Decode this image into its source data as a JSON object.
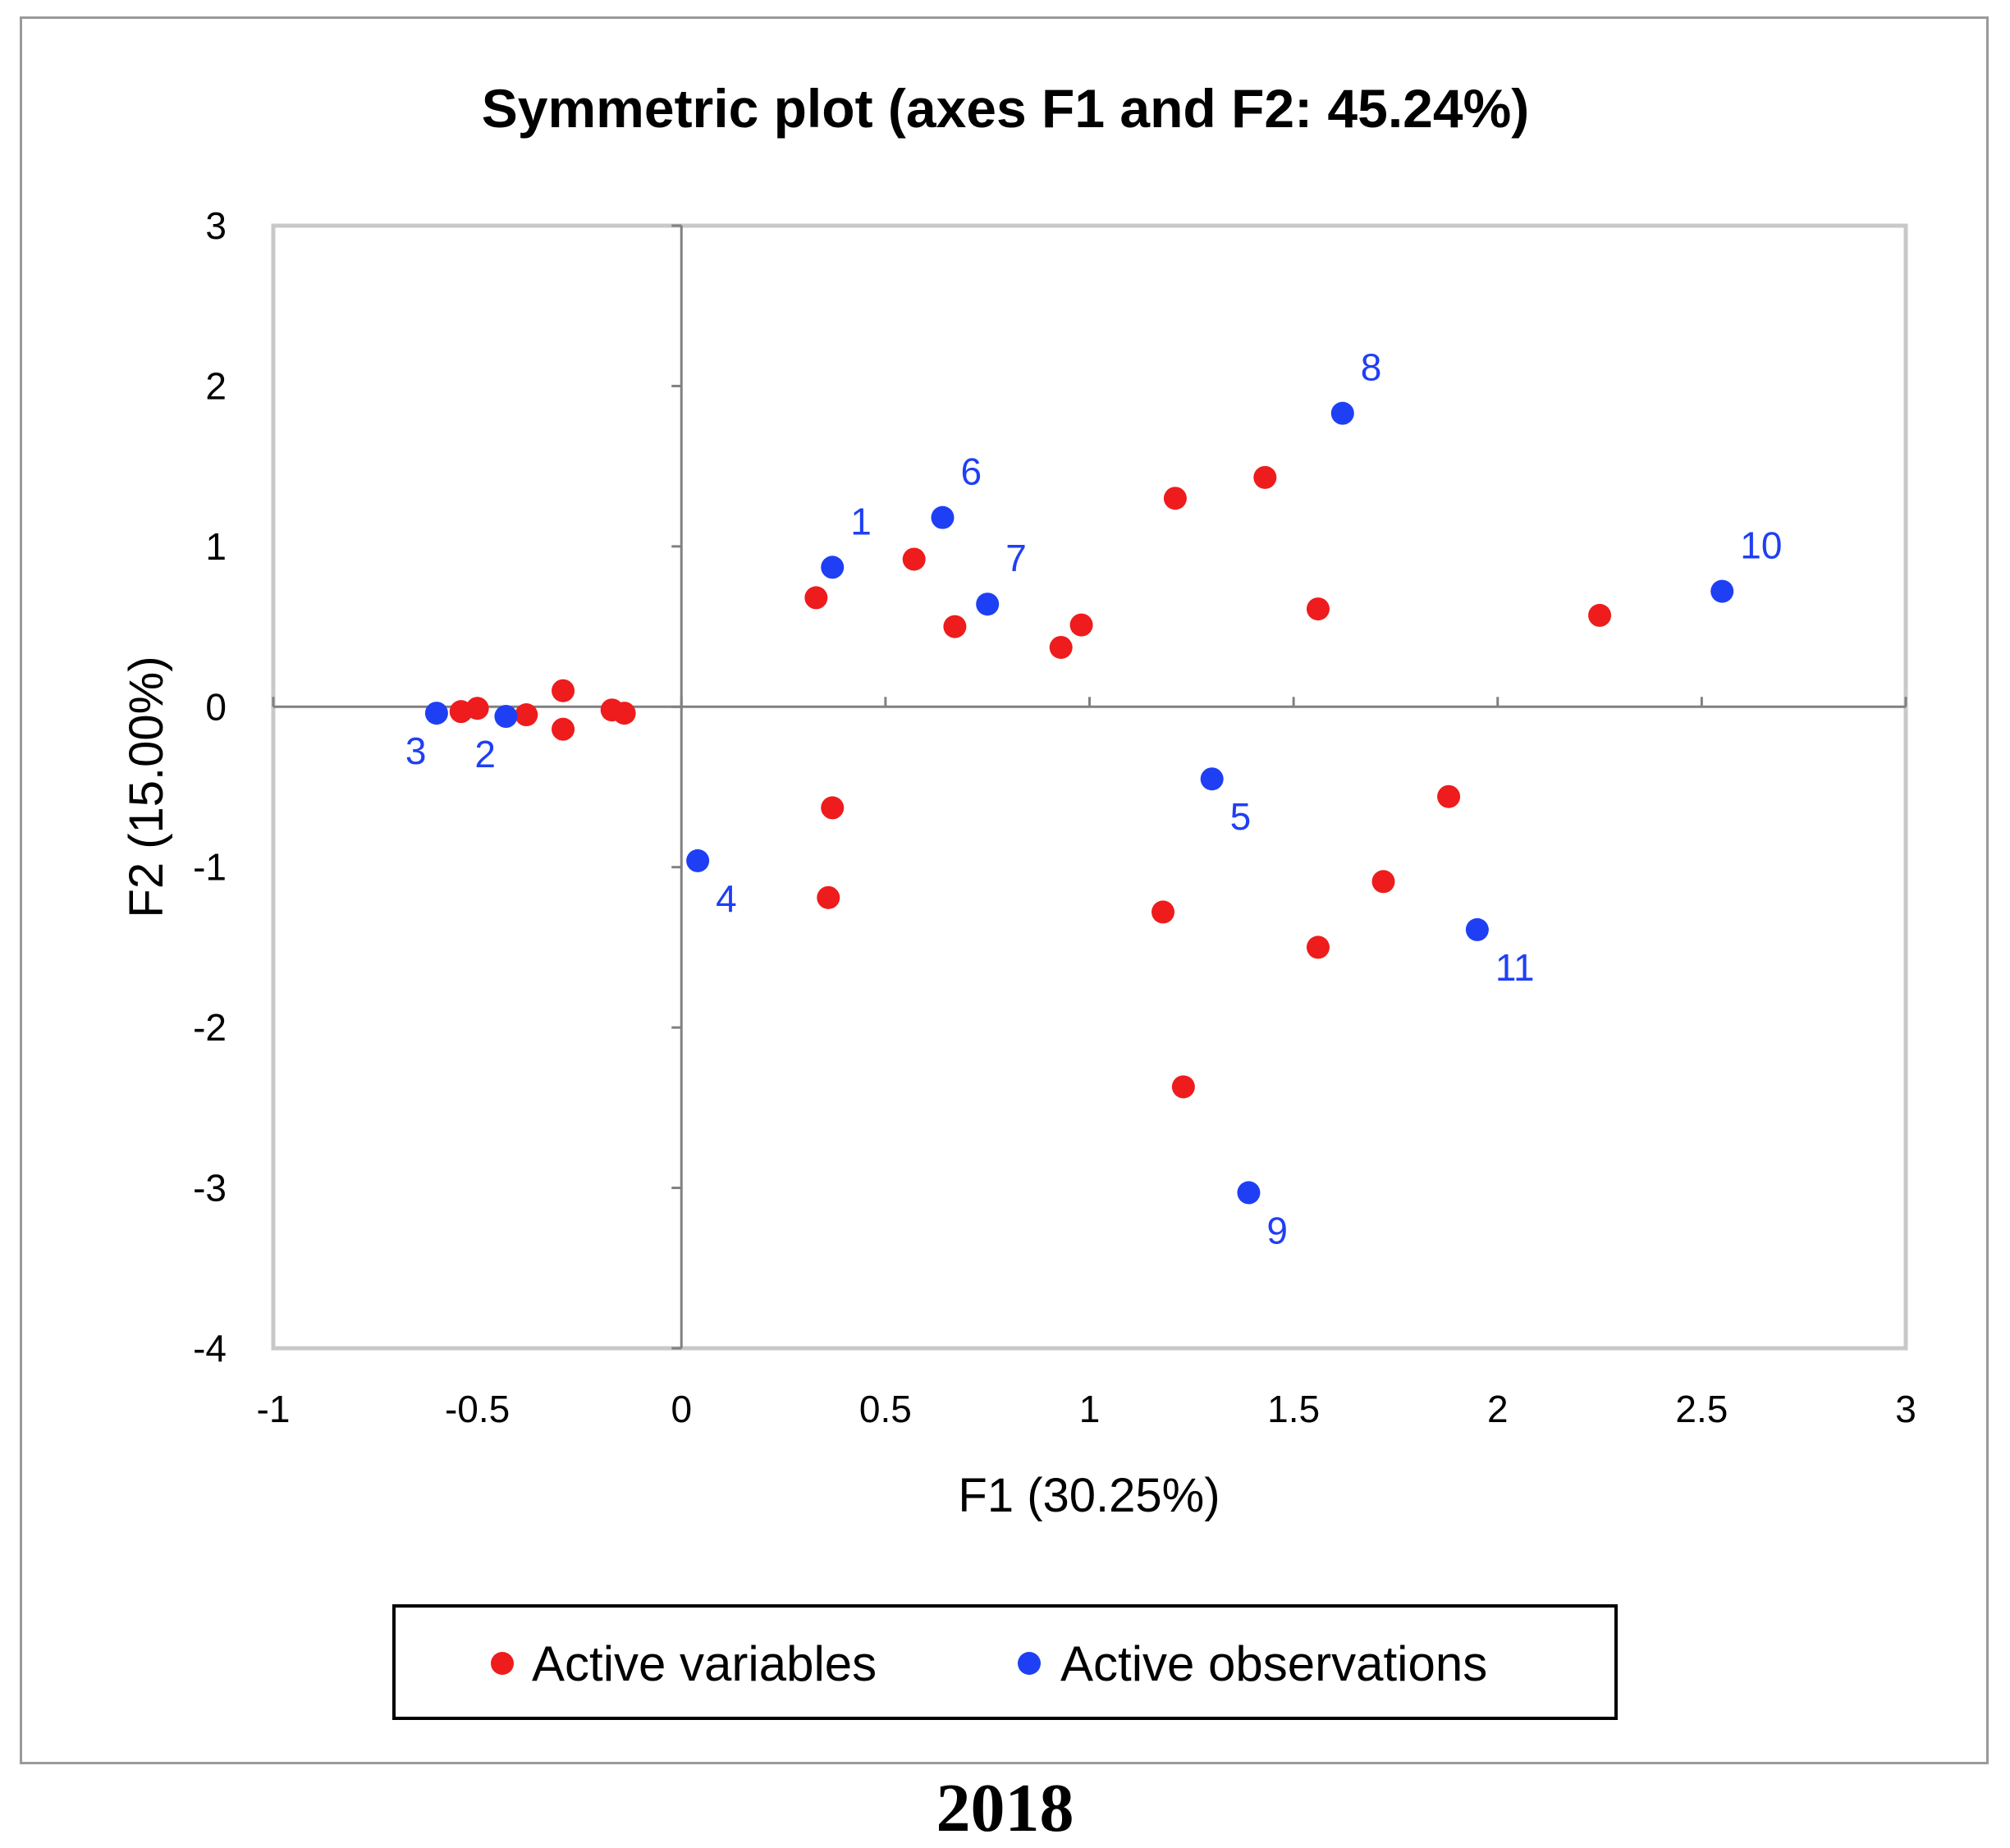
{
  "chart_data": {
    "type": "scatter",
    "title": "Symmetric plot (axes F1 and F2: 45.24%)",
    "xlabel": "F1 (30.25%)",
    "ylabel": "F2 (15.00%)",
    "xlim": [
      -1,
      3
    ],
    "ylim": [
      -4,
      3
    ],
    "x_ticks": [
      -1,
      -0.5,
      0,
      0.5,
      1,
      1.5,
      2,
      2.5,
      3
    ],
    "x_tick_labels": [
      "-1",
      "-0.5",
      "0",
      "0.5",
      "1",
      "1.5",
      "2",
      "2.5",
      "3"
    ],
    "y_ticks": [
      3,
      2,
      1,
      0,
      -1,
      -2,
      -3,
      -4
    ],
    "y_tick_labels": [
      "3",
      "2",
      "1",
      "0",
      "-1",
      "-2",
      "-3",
      "-4"
    ],
    "grid": false,
    "legend_position": "bottom",
    "series": [
      {
        "name": "Active variables",
        "color": "#ee1c1c",
        "points": [
          {
            "x": 0.33,
            "y": 0.68
          },
          {
            "x": 0.57,
            "y": 0.92
          },
          {
            "x": 0.67,
            "y": 0.5
          },
          {
            "x": 0.93,
            "y": 0.37
          },
          {
            "x": 0.98,
            "y": 0.51
          },
          {
            "x": 1.21,
            "y": 1.3
          },
          {
            "x": 1.43,
            "y": 1.43
          },
          {
            "x": 1.56,
            "y": 0.61
          },
          {
            "x": 2.25,
            "y": 0.57
          },
          {
            "x": -0.54,
            "y": -0.03
          },
          {
            "x": -0.5,
            "y": -0.01
          },
          {
            "x": -0.38,
            "y": -0.05
          },
          {
            "x": -0.29,
            "y": 0.1
          },
          {
            "x": -0.29,
            "y": -0.14
          },
          {
            "x": -0.17,
            "y": -0.02
          },
          {
            "x": -0.14,
            "y": -0.04
          },
          {
            "x": 0.37,
            "y": -0.63
          },
          {
            "x": 0.36,
            "y": -1.19
          },
          {
            "x": 1.18,
            "y": -1.28
          },
          {
            "x": 1.56,
            "y": -1.5
          },
          {
            "x": 1.72,
            "y": -1.09
          },
          {
            "x": 1.88,
            "y": -0.56
          },
          {
            "x": 1.23,
            "y": -2.37
          }
        ]
      },
      {
        "name": "Active observations",
        "color": "#1f3ff5",
        "points": [
          {
            "x": 0.37,
            "y": 0.87,
            "label": "1"
          },
          {
            "x": -0.43,
            "y": -0.06,
            "label": "2"
          },
          {
            "x": -0.6,
            "y": -0.04,
            "label": "3"
          },
          {
            "x": 0.04,
            "y": -0.96,
            "label": "4"
          },
          {
            "x": 1.3,
            "y": -0.45,
            "label": "5"
          },
          {
            "x": 0.64,
            "y": 1.18,
            "label": "6"
          },
          {
            "x": 0.75,
            "y": 0.64,
            "label": "7"
          },
          {
            "x": 1.62,
            "y": 1.83,
            "label": "8"
          },
          {
            "x": 1.39,
            "y": -3.03,
            "label": "9"
          },
          {
            "x": 2.55,
            "y": 0.72,
            "label": "10"
          },
          {
            "x": 1.95,
            "y": -1.39,
            "label": "11"
          }
        ]
      }
    ]
  },
  "caption": "2018"
}
